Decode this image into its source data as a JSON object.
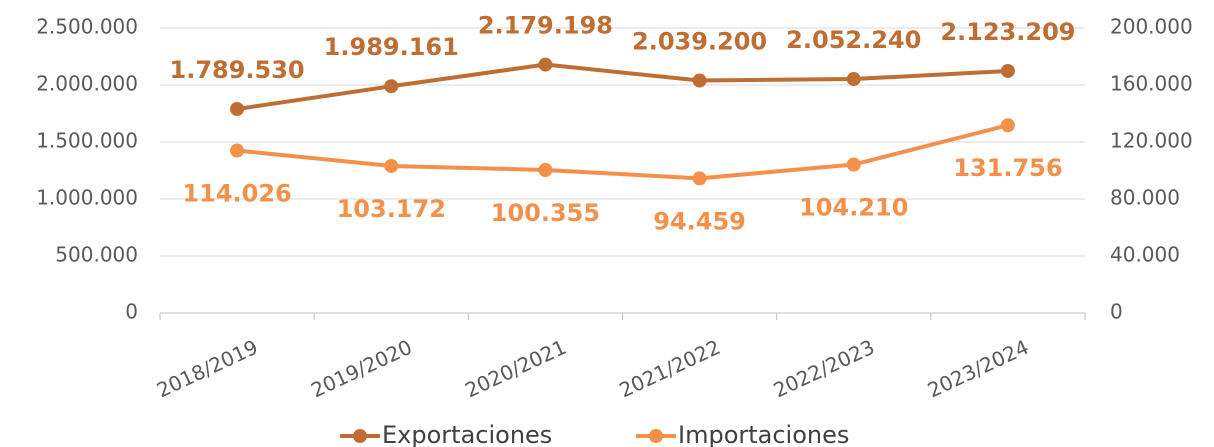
{
  "chart_data": {
    "type": "line",
    "categories": [
      "2018/2019",
      "2019/2020",
      "2020/2021",
      "2021/2022",
      "2022/2023",
      "2023/2024"
    ],
    "series": [
      {
        "name": "Exportaciones",
        "color": "#bf6e33",
        "values": [
          1789530,
          1989161,
          2179198,
          2039200,
          2052240,
          2123209
        ],
        "value_labels": [
          "1.789.530",
          "1.989.161",
          "2.179.198",
          "2.039.200",
          "2.052.240",
          "2.123.209"
        ]
      },
      {
        "name": "Importaciones",
        "color": "#f4904a",
        "axis": "y2",
        "values": [
          114026,
          103172,
          100355,
          94459,
          104210,
          131756
        ],
        "value_labels": [
          "114.026",
          "103.172",
          "100.355",
          "94.459",
          "104.210",
          "131.756"
        ]
      }
    ],
    "ylim": [
      0,
      2500000
    ],
    "yticks": [
      0,
      {
        "value": 500000,
        "label": "500.000"
      },
      {
        "value": 1000000,
        "label": "1.000.000"
      },
      {
        "value": 1500000,
        "label": "1.500.000"
      },
      {
        "value": 2000000,
        "label": "2.000.000"
      },
      {
        "value": 2500000,
        "label": "2.500.000"
      }
    ],
    "y2lim": [
      0,
      200000
    ],
    "y2ticks": [
      0,
      {
        "value": 40000,
        "label": "40.000"
      },
      {
        "value": 80000,
        "label": "80.000"
      },
      {
        "value": 120000,
        "label": "120.000"
      },
      {
        "value": 160000,
        "label": "160.000"
      },
      {
        "value": 200000,
        "label": "200.000"
      }
    ],
    "grid": true,
    "legend": "bottom"
  }
}
